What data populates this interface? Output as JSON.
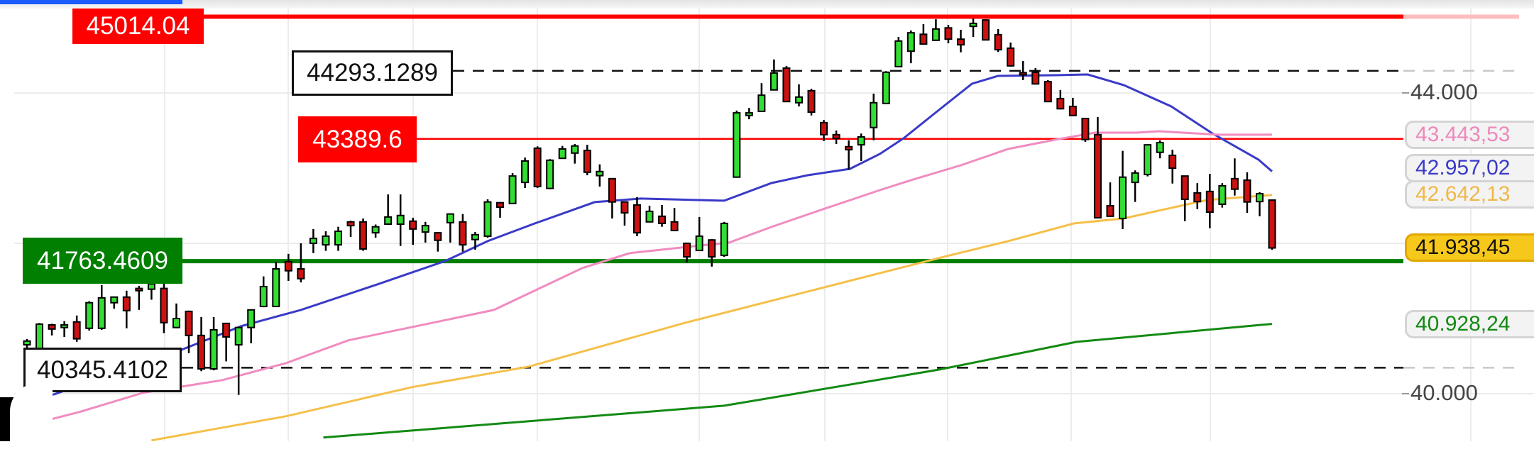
{
  "chart_data": {
    "type": "candlestick",
    "y_axis": {
      "range": [
        39400,
        45200
      ],
      "tick_labels": [
        "44.000",
        "40.000"
      ],
      "ticks": [
        44000,
        40000
      ],
      "position": "right"
    },
    "grid": true,
    "candle_format": [
      "open",
      "high",
      "low",
      "close"
    ],
    "candles": [
      [
        40650,
        40728,
        40470,
        40700
      ],
      [
        40550,
        40940,
        40480,
        40925
      ],
      [
        40915,
        40930,
        40775,
        40860
      ],
      [
        40880,
        40965,
        40755,
        40915
      ],
      [
        40955,
        41040,
        40690,
        40730
      ],
      [
        40870,
        41230,
        40840,
        41210
      ],
      [
        40870,
        41445,
        40850,
        41275
      ],
      [
        41210,
        41290,
        41130,
        41285
      ],
      [
        41285,
        41370,
        40870,
        41105
      ],
      [
        41400,
        41435,
        41115,
        41370
      ],
      [
        41390,
        41600,
        41250,
        41460
      ],
      [
        41400,
        41465,
        40805,
        40945
      ],
      [
        40880,
        41200,
        40870,
        41000
      ],
      [
        41095,
        41105,
        40540,
        40775
      ],
      [
        40775,
        41020,
        40300,
        40330
      ],
      [
        40330,
        41020,
        40310,
        40850
      ],
      [
        40935,
        40935,
        40430,
        40755
      ],
      [
        40650,
        40880,
        39985,
        40880
      ],
      [
        40880,
        41115,
        40670,
        41115
      ],
      [
        41160,
        41560,
        41150,
        41425
      ],
      [
        41160,
        41755,
        41160,
        41660
      ],
      [
        41755,
        41860,
        41500,
        41635
      ],
      [
        41660,
        42000,
        41480,
        41530
      ],
      [
        42000,
        42190,
        41870,
        42065
      ],
      [
        41980,
        42160,
        41900,
        42095
      ],
      [
        41980,
        42220,
        41900,
        42160
      ],
      [
        42285,
        42300,
        42085,
        42235
      ],
      [
        42285,
        42330,
        41900,
        41925
      ],
      [
        42140,
        42250,
        42075,
        42220
      ],
      [
        42255,
        42650,
        42245,
        42350
      ],
      [
        42255,
        42650,
        41965,
        42370
      ],
      [
        42295,
        42340,
        41980,
        42190
      ],
      [
        42150,
        42285,
        42010,
        42235
      ],
      [
        42140,
        42150,
        41890,
        42040
      ],
      [
        42275,
        42390,
        42010,
        42390
      ],
      [
        42285,
        42390,
        41890,
        41980
      ],
      [
        42050,
        42150,
        41915,
        42115
      ],
      [
        42095,
        42585,
        42075,
        42550
      ],
      [
        42540,
        42550,
        42340,
        42480
      ],
      [
        42530,
        42935,
        42530,
        42895
      ],
      [
        42810,
        43140,
        42735,
        43095
      ],
      [
        43265,
        43290,
        42735,
        42755
      ],
      [
        42730,
        43120,
        42720,
        43105
      ],
      [
        43130,
        43295,
        43130,
        43255
      ],
      [
        43200,
        43320,
        43060,
        43295
      ],
      [
        43235,
        43310,
        42905,
        42945
      ],
      [
        42900,
        43050,
        42755,
        42955
      ],
      [
        42860,
        42860,
        42330,
        42550
      ],
      [
        42550,
        42550,
        42235,
        42405
      ],
      [
        42510,
        42615,
        42095,
        42140
      ],
      [
        42285,
        42500,
        42280,
        42425
      ],
      [
        42360,
        42510,
        42220,
        42265
      ],
      [
        42285,
        42470,
        42170,
        42170
      ],
      [
        42000,
        42010,
        41745,
        41820
      ],
      [
        41905,
        42350,
        41905,
        42095
      ],
      [
        42045,
        42055,
        41690,
        41820
      ],
      [
        41840,
        42285,
        41820,
        42265
      ],
      [
        42880,
        43765,
        42880,
        43735
      ],
      [
        43700,
        43800,
        43650,
        43735
      ],
      [
        43755,
        44130,
        43745,
        43970
      ],
      [
        44040,
        44445,
        44040,
        44265
      ],
      [
        44330,
        44360,
        43885,
        43885
      ],
      [
        43870,
        44115,
        43820,
        43945
      ],
      [
        44030,
        44055,
        43700,
        43745
      ],
      [
        43605,
        43640,
        43360,
        43445
      ],
      [
        43445,
        43500,
        43320,
        43395
      ],
      [
        43285,
        43370,
        42980,
        43245
      ],
      [
        43310,
        43460,
        43095,
        43415
      ],
      [
        43540,
        43990,
        43370,
        43870
      ],
      [
        43860,
        44290,
        43855,
        44275
      ],
      [
        44350,
        44745,
        44340,
        44690
      ],
      [
        44555,
        44830,
        44395,
        44800
      ],
      [
        44780,
        44915,
        44640,
        44650
      ],
      [
        44700,
        44980,
        44700,
        44850
      ],
      [
        44865,
        44905,
        44660,
        44715
      ],
      [
        44715,
        44840,
        44540,
        44640
      ],
      [
        44885,
        44990,
        44745,
        44925
      ],
      [
        44970,
        44980,
        44700,
        44705
      ],
      [
        44775,
        44850,
        44545,
        44575
      ],
      [
        44595,
        44670,
        44350,
        44360
      ],
      [
        44270,
        44425,
        44170,
        44245
      ],
      [
        44275,
        44330,
        44115,
        44120
      ],
      [
        44150,
        44170,
        43885,
        43885
      ],
      [
        43925,
        44040,
        43780,
        43790
      ],
      [
        43820,
        43935,
        43690,
        43700
      ],
      [
        43660,
        43660,
        43350,
        43380
      ],
      [
        43445,
        43680,
        42340,
        42340
      ],
      [
        42500,
        42810,
        42360,
        42360
      ],
      [
        42330,
        43230,
        42190,
        42880
      ],
      [
        42810,
        42970,
        42550,
        42935
      ],
      [
        42915,
        43310,
        42890,
        43310
      ],
      [
        43210,
        43370,
        43130,
        43340
      ],
      [
        43170,
        43245,
        42795,
        43000
      ],
      [
        42895,
        42895,
        42295,
        42585
      ],
      [
        42670,
        42800,
        42455,
        42555
      ],
      [
        42690,
        42925,
        42200,
        42415
      ],
      [
        42520,
        42800,
        42475,
        42765
      ],
      [
        42860,
        43130,
        42635,
        42720
      ],
      [
        42840,
        42945,
        42405,
        42550
      ],
      [
        42555,
        42680,
        42360,
        42660
      ],
      [
        42575,
        42575,
        41915,
        41938.45
      ]
    ],
    "candle_colors": {
      "up": "#33dd33",
      "down": "#cc1111",
      "outline": "#000000"
    },
    "moving_averages": [
      {
        "color": "#3a3ac8",
        "last_value_label": "42.957,02",
        "points": [
          [
            0.5,
            39926
          ],
          [
            3.2,
            39992
          ],
          [
            13.3,
            40577
          ],
          [
            18.2,
            40898
          ],
          [
            23,
            41114
          ],
          [
            29.3,
            41463
          ],
          [
            34.6,
            41765
          ],
          [
            38,
            42029
          ],
          [
            41.8,
            42265
          ],
          [
            46.6,
            42548
          ],
          [
            50.3,
            42595
          ],
          [
            57,
            42567
          ],
          [
            60.8,
            42802
          ],
          [
            63.7,
            42906
          ],
          [
            67.1,
            42991
          ],
          [
            69.5,
            43189
          ],
          [
            71.4,
            43396
          ],
          [
            74.1,
            43755
          ],
          [
            76.9,
            44123
          ],
          [
            79,
            44226
          ],
          [
            83.6,
            44236
          ],
          [
            86.2,
            44245
          ],
          [
            89.1,
            44104
          ],
          [
            92.9,
            43821
          ],
          [
            96.2,
            43462
          ],
          [
            99.9,
            43114
          ],
          [
            101,
            42957
          ]
        ]
      },
      {
        "color": "#f08cc0",
        "last_value_label": "43.443,53",
        "points": [
          [
            0.5,
            39558
          ],
          [
            5.2,
            39757
          ],
          [
            10.3,
            40011
          ],
          [
            16.7,
            40181
          ],
          [
            21.8,
            40407
          ],
          [
            26.8,
            40709
          ],
          [
            35,
            40992
          ],
          [
            38.5,
            41114
          ],
          [
            45.6,
            41671
          ],
          [
            49.4,
            41869
          ],
          [
            54.1,
            41954
          ],
          [
            57.4,
            42010
          ],
          [
            60.8,
            42218
          ],
          [
            64.6,
            42435
          ],
          [
            69.5,
            42708
          ],
          [
            72.2,
            42850
          ],
          [
            76,
            43038
          ],
          [
            79.8,
            43255
          ],
          [
            83.6,
            43378
          ],
          [
            86.8,
            43472
          ],
          [
            90.1,
            43472
          ],
          [
            91.9,
            43491
          ],
          [
            96.7,
            43444
          ],
          [
            101,
            43444
          ]
        ]
      },
      {
        "color": "#f5c04a",
        "last_value_label": "42.642,13",
        "points": [
          [
            11,
            39379
          ],
          [
            21.8,
            39700
          ],
          [
            31.9,
            40087
          ],
          [
            41.3,
            40360
          ],
          [
            53.9,
            40945
          ],
          [
            75.1,
            41840
          ],
          [
            79.8,
            42029
          ],
          [
            85.1,
            42265
          ],
          [
            89.1,
            42331
          ],
          [
            91.9,
            42435
          ],
          [
            95.8,
            42576
          ],
          [
            101,
            42642
          ]
        ]
      },
      {
        "color": "#138a13",
        "last_value_label": "40.928,24",
        "points": [
          [
            24.8,
            39417
          ],
          [
            57,
            39841
          ],
          [
            74.3,
            40322
          ],
          [
            85.3,
            40690
          ],
          [
            101,
            40928
          ]
        ]
      }
    ],
    "last_price_label": "41.938,45",
    "last_price_color": "#f7c81c",
    "horizontal_levels": [
      {
        "value": 45014.04,
        "label": "45014.04",
        "style": "solid-thick",
        "color": "#ff0000"
      },
      {
        "value": 44293.1289,
        "label": "44293.1289",
        "style": "dashed",
        "color": "#111111"
      },
      {
        "value": 43389.6,
        "label": "43389.6",
        "style": "solid",
        "color": "#ff0000"
      },
      {
        "value": 41763.4609,
        "label": "41763.4609",
        "style": "solid-thick",
        "color": "#007f00"
      },
      {
        "value": 40345.4102,
        "label": "40345.4102",
        "style": "dashed",
        "color": "#111111"
      }
    ]
  }
}
